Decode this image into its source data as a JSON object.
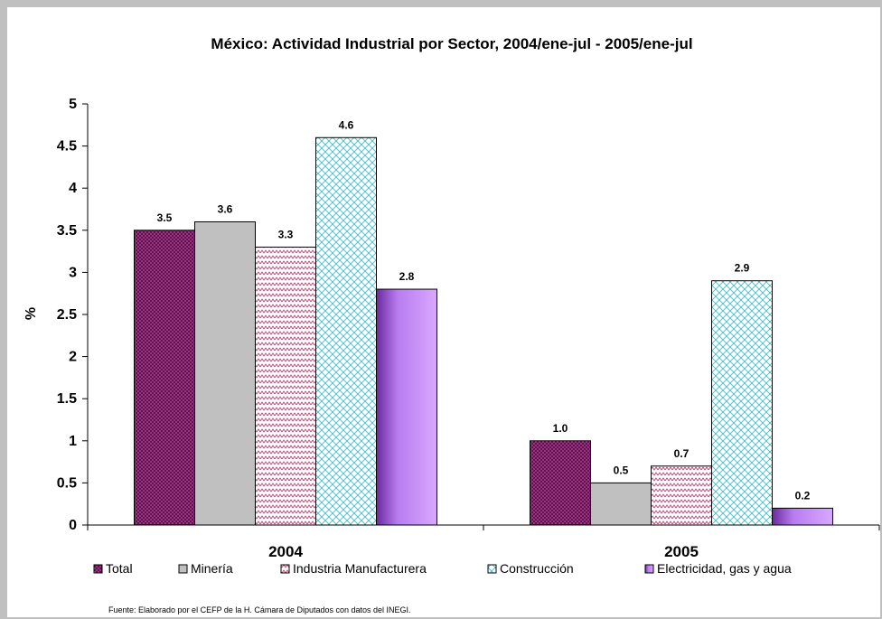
{
  "chart_data": {
    "type": "bar",
    "title": "México: Actividad Industrial por Sector, 2004/ene-jul - 2005/ene-jul",
    "ylabel": "%",
    "xlabel": "",
    "ylim": [
      0,
      5
    ],
    "yticks": [
      "0",
      "0.5",
      "1",
      "1.5",
      "2",
      "2.5",
      "3",
      "3.5",
      "4",
      "4.5",
      "5"
    ],
    "categories": [
      "2004",
      "2005"
    ],
    "grid": false,
    "legend_position": "bottom",
    "series": [
      {
        "name": "Total",
        "values": [
          3.5,
          1.0
        ],
        "labels": [
          "3.5",
          "1.0"
        ],
        "color": "#6a0a55",
        "pattern": "dots"
      },
      {
        "name": "Minería",
        "values": [
          3.6,
          0.5
        ],
        "labels": [
          "3.6",
          "0.5"
        ],
        "color": "#c0c0c0",
        "pattern": "solid"
      },
      {
        "name": "Industria Manufacturera",
        "values": [
          3.3,
          0.7
        ],
        "labels": [
          "3.3",
          "0.7"
        ],
        "color": "#f2c4d8",
        "pattern": "zigzag"
      },
      {
        "name": "Construcción",
        "values": [
          4.6,
          2.9
        ],
        "labels": [
          "4.6",
          "2.9"
        ],
        "color": "#ccf2f2",
        "pattern": "waves"
      },
      {
        "name": "Electricidad, gas y agua",
        "values": [
          2.8,
          0.2
        ],
        "labels": [
          "2.8",
          "0.2"
        ],
        "color": "#b87cf0",
        "pattern": "gradient"
      }
    ],
    "source": "Fuente: Elaborado por el CEFP de la H. Cámara de Diputados con datos del INEGI."
  }
}
